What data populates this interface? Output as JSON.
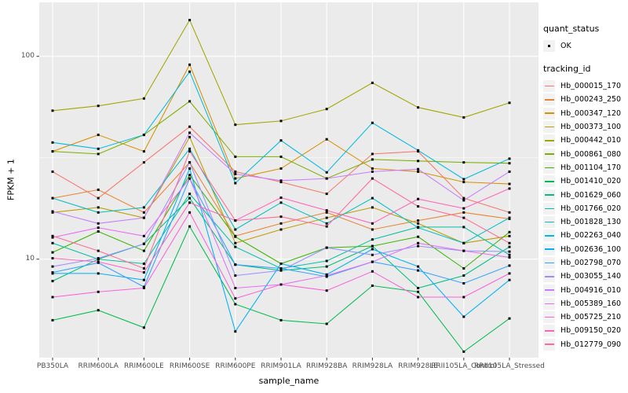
{
  "figure": {
    "y_axis": {
      "title": "FPKM + 1",
      "tick_labels": [
        "100",
        "10"
      ],
      "tick_values": [
        100,
        10
      ]
    },
    "x_axis": {
      "title": "sample_name"
    }
  },
  "legend": {
    "quant_status": {
      "title": "quant_status",
      "items": [
        {
          "label": "OK",
          "marker": "black-square"
        }
      ]
    },
    "tracking_id": {
      "title": "tracking_id"
    }
  },
  "colors": {
    "panel_background": "#EBEBEB",
    "grid_line": "#FFFFFF",
    "legend_key_background": "#F2F2F2",
    "point_color": "#000000",
    "axis_text": "#4D4D4D",
    "tick_mark": "#333333"
  },
  "chart_data": {
    "type": "line",
    "title": "",
    "xlabel": "sample_name",
    "ylabel": "FPKM + 1",
    "yscale": "log10",
    "ylim": [
      3.27,
      184.6
    ],
    "yticks": [
      100,
      10
    ],
    "minor_gridlines": [
      31.62
    ],
    "grid": true,
    "legend_position": "right",
    "point": {
      "shape": "square",
      "color": "#000000",
      "size": 3
    },
    "x": [
      "PB350LA",
      "RRIM600LA",
      "RRIM600LE",
      "RRIM600SE",
      "RRIM600PE",
      "RRIM901LA",
      "RRIM928BA",
      "RRIM928LA",
      "RRIM928LE",
      "RRII105LA_Control",
      "RRII105LA_Stressed"
    ],
    "series": [
      {
        "name": "Hb_000015_170",
        "color": "#F8766D",
        "values": [
          27,
          20,
          30,
          45,
          27,
          24,
          21,
          33,
          34,
          20,
          17
        ]
      },
      {
        "name": "Hb_000243_250",
        "color": "#EA8331",
        "values": [
          20,
          22,
          17,
          30,
          13,
          15,
          17,
          14,
          15.5,
          17,
          15.8
        ]
      },
      {
        "name": "Hb_000347_120",
        "color": "#D89000",
        "values": [
          34,
          41,
          34,
          91,
          25,
          28,
          39,
          28,
          27,
          24,
          23.5
        ]
      },
      {
        "name": "Hb_000373_100",
        "color": "#C09B00",
        "values": [
          17,
          18,
          16,
          40,
          12,
          14,
          16,
          18,
          15,
          12,
          13
        ]
      },
      {
        "name": "Hb_000442_010",
        "color": "#A3A500",
        "values": [
          54,
          57,
          62,
          151,
          46,
          48,
          55,
          74,
          56,
          50,
          59
        ]
      },
      {
        "name": "Hb_000861_080",
        "color": "#7CAE00",
        "values": [
          34,
          33,
          41,
          60,
          32,
          32,
          25,
          31,
          30.5,
          30,
          29.7
        ]
      },
      {
        "name": "Hb_001104_170",
        "color": "#39B600",
        "values": [
          10.8,
          13.7,
          11,
          26,
          12.9,
          9.5,
          11.4,
          11.6,
          12.9,
          9,
          13.6
        ]
      },
      {
        "name": "Hb_001410_020",
        "color": "#00BB4E",
        "values": [
          5.0,
          5.6,
          4.6,
          14.5,
          6.0,
          5.0,
          4.8,
          7.4,
          6.9,
          3.5,
          5.1
        ]
      },
      {
        "name": "Hb_001629_060",
        "color": "#00BF7D",
        "values": [
          7.8,
          10,
          11.9,
          20,
          9.4,
          8.8,
          9.2,
          11.6,
          7.2,
          8.3,
          11.5
        ]
      },
      {
        "name": "Hb_001766_020",
        "color": "#00C1A3",
        "values": [
          12,
          10,
          9.5,
          21,
          11.5,
          9.0,
          9.8,
          12.5,
          14.4,
          14.4,
          10.5
        ]
      },
      {
        "name": "Hb_001828_130",
        "color": "#00BFC4",
        "values": [
          20,
          17,
          18,
          35,
          14,
          19,
          15,
          20,
          14.3,
          12,
          16
        ]
      },
      {
        "name": "Hb_002263_040",
        "color": "#00BAE0",
        "values": [
          37.6,
          35,
          41,
          84,
          23.7,
          38.5,
          26.8,
          47,
          34.4,
          24.8,
          31.3
        ]
      },
      {
        "name": "Hb_002636_100",
        "color": "#00B0F6",
        "values": [
          8.5,
          8.5,
          7.9,
          28,
          4.4,
          9.5,
          8.4,
          11.2,
          9.2,
          5.2,
          7.9
        ]
      },
      {
        "name": "Hb_002798_070",
        "color": "#35A2FF",
        "values": [
          8.6,
          9.6,
          7.3,
          25,
          9.4,
          9.0,
          8.2,
          9.7,
          8.8,
          7.6,
          9.3
        ]
      },
      {
        "name": "Hb_003055_140",
        "color": "#9590FF",
        "values": [
          9.2,
          10.1,
          11.9,
          30,
          8.3,
          8.8,
          11.4,
          10.5,
          11.6,
          11,
          10.9
        ]
      },
      {
        "name": "Hb_004916_010",
        "color": "#C77CFF",
        "values": [
          17.2,
          15,
          16,
          42,
          26.3,
          24.4,
          25,
          27,
          27.8,
          19.5,
          27
        ]
      },
      {
        "name": "Hb_005389_160",
        "color": "#E76BF3",
        "values": [
          12.8,
          14.3,
          13,
          25,
          7.2,
          7.5,
          8.3,
          9.7,
          12,
          11,
          10.2
        ]
      },
      {
        "name": "Hb_005725_210",
        "color": "#FA62DB",
        "values": [
          6.5,
          6.9,
          7.2,
          17,
          6.4,
          7.5,
          7.0,
          8.7,
          6.5,
          6.5,
          8.5
        ]
      },
      {
        "name": "Hb_009150_020",
        "color": "#FF62BC",
        "values": [
          10.1,
          9.7,
          8.6,
          19,
          15.5,
          20.1,
          17.4,
          15,
          19.8,
          17.8,
          22.3
        ]
      },
      {
        "name": "Hb_012779_090",
        "color": "#FF6A98",
        "values": [
          13,
          11,
          9,
          34,
          15.5,
          16.2,
          14.5,
          25,
          18.2,
          16,
          12
        ]
      }
    ]
  }
}
